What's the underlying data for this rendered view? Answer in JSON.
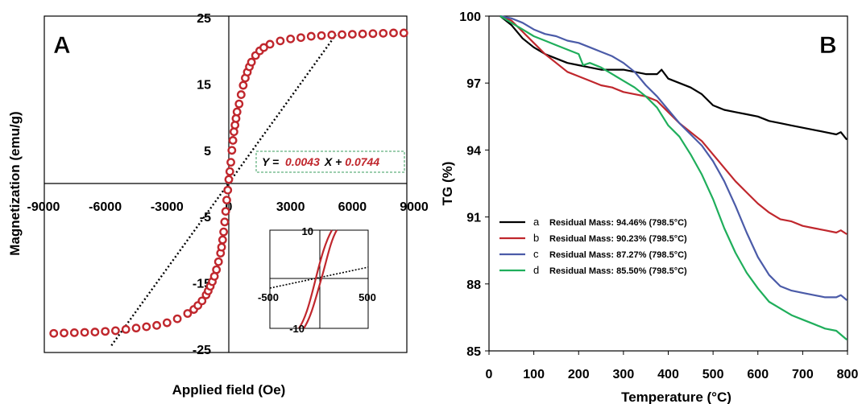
{
  "chart_data": [
    {
      "type": "scatter",
      "panel_label": "A",
      "xlabel": "Applied field (Oe)",
      "ylabel": "Magnetization (emu/g)",
      "xlim": [
        -9000,
        9000
      ],
      "ylim": [
        -25,
        25
      ],
      "xticks": [
        "-9000",
        "-6000",
        "-3000",
        "0",
        "3000",
        "6000",
        "9000"
      ],
      "xtick_values": [
        -9000,
        -6000,
        -3000,
        0,
        3000,
        6000,
        9000
      ],
      "yticks": [
        "-25",
        "-15",
        "-5",
        "5",
        "15",
        "25"
      ],
      "ytick_values": [
        -25,
        -15,
        -5,
        5,
        15,
        25
      ],
      "marker_color": "#c0272d",
      "series": [
        {
          "x": [
            -8500,
            -8000,
            -7500,
            -7000,
            -6500,
            -6000,
            -5500,
            -5000,
            -4500,
            -4000,
            -3500,
            -3000,
            -2500,
            -2000,
            -1700,
            -1500,
            -1300,
            -1100,
            -1000,
            -900,
            -800,
            -700,
            -600,
            -500,
            -400,
            -350,
            -300,
            -250,
            -200,
            -150,
            -100,
            -50,
            0,
            50,
            100,
            150,
            200,
            250,
            300,
            350,
            400,
            500,
            600,
            700,
            800,
            900,
            1000,
            1100,
            1300,
            1500,
            1700,
            2000,
            2500,
            3000,
            3500,
            4000,
            4500,
            5000,
            5500,
            6000,
            6500,
            7000,
            7500,
            8000,
            8500
          ],
          "y": [
            -22.6,
            -22.55,
            -22.5,
            -22.45,
            -22.4,
            -22.3,
            -22.2,
            -22.0,
            -21.8,
            -21.6,
            -21.4,
            -21.0,
            -20.4,
            -19.6,
            -19.0,
            -18.4,
            -17.7,
            -16.8,
            -16.2,
            -15.5,
            -14.8,
            -14.0,
            -13.0,
            -11.8,
            -10.5,
            -9.6,
            -8.5,
            -7.3,
            -5.8,
            -4.2,
            -2.5,
            -1.0,
            0.6,
            1.8,
            3.2,
            5.0,
            6.5,
            7.8,
            8.8,
            9.8,
            10.8,
            12.0,
            13.4,
            14.8,
            15.9,
            16.8,
            17.6,
            18.3,
            19.3,
            20.0,
            20.5,
            21.0,
            21.5,
            21.8,
            22.0,
            22.2,
            22.3,
            22.4,
            22.45,
            22.5,
            22.55,
            22.6,
            22.65,
            22.7,
            22.7
          ]
        }
      ],
      "fit_line": {
        "slope": 0.0043,
        "intercept": 0.0744
      },
      "equation": {
        "y": "Y =",
        "slope": "0.0043",
        "x": "X +",
        "intercept": "0.0744"
      },
      "inset": {
        "xlim": [
          -500,
          500
        ],
        "ylim": [
          -10,
          10
        ],
        "xticks": [
          "-500",
          "500"
        ],
        "yticks": [
          "10",
          "-10"
        ]
      }
    },
    {
      "type": "line",
      "panel_label": "B",
      "xlabel": "Temperature (°C)",
      "ylabel": "TG (%)",
      "xlim": [
        0,
        800
      ],
      "ylim": [
        85,
        100
      ],
      "xticks": [
        "0",
        "100",
        "200",
        "300",
        "400",
        "500",
        "600",
        "700",
        "800"
      ],
      "xtick_values": [
        0,
        100,
        200,
        300,
        400,
        500,
        600,
        700,
        800
      ],
      "yticks": [
        "100",
        "97",
        "94",
        "91",
        "88",
        "85"
      ],
      "ytick_values": [
        100,
        97,
        94,
        91,
        88,
        85
      ],
      "legend_placement": "bottom-left",
      "series": [
        {
          "name": "a",
          "legend_text": "Residual Mass:  94.46%  (798.5°C)",
          "color": "#000000",
          "x": [
            25,
            50,
            75,
            100,
            125,
            150,
            175,
            200,
            225,
            250,
            275,
            300,
            325,
            350,
            375,
            385,
            400,
            425,
            450,
            475,
            500,
            525,
            550,
            575,
            600,
            625,
            650,
            675,
            700,
            725,
            750,
            775,
            785,
            798.5
          ],
          "y": [
            100,
            99.6,
            99.0,
            98.6,
            98.3,
            98.1,
            97.9,
            97.8,
            97.7,
            97.6,
            97.6,
            97.6,
            97.5,
            97.4,
            97.4,
            97.6,
            97.2,
            97.0,
            96.8,
            96.5,
            96.0,
            95.8,
            95.7,
            95.6,
            95.5,
            95.3,
            95.2,
            95.1,
            95.0,
            94.9,
            94.8,
            94.7,
            94.8,
            94.46
          ]
        },
        {
          "name": "b",
          "legend_text": "Residual Mass:  90.23%  (798.5°C)",
          "color": "#c0272d",
          "x": [
            25,
            50,
            75,
            100,
            125,
            150,
            175,
            200,
            225,
            250,
            275,
            300,
            325,
            350,
            375,
            400,
            425,
            450,
            475,
            500,
            525,
            550,
            575,
            600,
            625,
            650,
            675,
            700,
            725,
            750,
            775,
            785,
            798.5
          ],
          "y": [
            100,
            99.8,
            99.3,
            98.8,
            98.3,
            97.9,
            97.5,
            97.3,
            97.1,
            96.9,
            96.8,
            96.6,
            96.5,
            96.4,
            96.2,
            95.7,
            95.2,
            94.8,
            94.4,
            93.8,
            93.2,
            92.6,
            92.1,
            91.6,
            91.2,
            90.9,
            90.8,
            90.6,
            90.5,
            90.4,
            90.3,
            90.4,
            90.23
          ]
        },
        {
          "name": "c",
          "legend_text": "Residual Mass:  87.27%  (798.5°C)",
          "color": "#4b5ba8",
          "x": [
            25,
            50,
            75,
            100,
            125,
            150,
            175,
            200,
            225,
            250,
            275,
            300,
            325,
            350,
            375,
            400,
            425,
            450,
            475,
            500,
            525,
            550,
            575,
            600,
            625,
            650,
            675,
            700,
            725,
            750,
            775,
            785,
            798.5
          ],
          "y": [
            100,
            99.9,
            99.7,
            99.4,
            99.2,
            99.1,
            98.9,
            98.8,
            98.6,
            98.4,
            98.2,
            97.9,
            97.5,
            96.9,
            96.4,
            95.8,
            95.2,
            94.7,
            94.2,
            93.5,
            92.6,
            91.5,
            90.3,
            89.2,
            88.4,
            87.9,
            87.7,
            87.6,
            87.5,
            87.4,
            87.4,
            87.5,
            87.27
          ]
        },
        {
          "name": "d",
          "legend_text": "Residual Mass:  85.50%  (798.5°C)",
          "color": "#1fae5b",
          "x": [
            25,
            50,
            75,
            100,
            125,
            150,
            175,
            200,
            210,
            225,
            250,
            275,
            300,
            325,
            350,
            375,
            400,
            425,
            450,
            475,
            500,
            525,
            550,
            575,
            600,
            625,
            650,
            675,
            700,
            725,
            750,
            775,
            798.5
          ],
          "y": [
            100,
            99.7,
            99.4,
            99.1,
            98.9,
            98.7,
            98.5,
            98.3,
            97.8,
            97.9,
            97.7,
            97.4,
            97.1,
            96.8,
            96.4,
            95.9,
            95.1,
            94.6,
            93.8,
            92.9,
            91.8,
            90.5,
            89.4,
            88.5,
            87.8,
            87.2,
            86.9,
            86.6,
            86.4,
            86.2,
            86.0,
            85.9,
            85.5
          ]
        }
      ]
    }
  ]
}
